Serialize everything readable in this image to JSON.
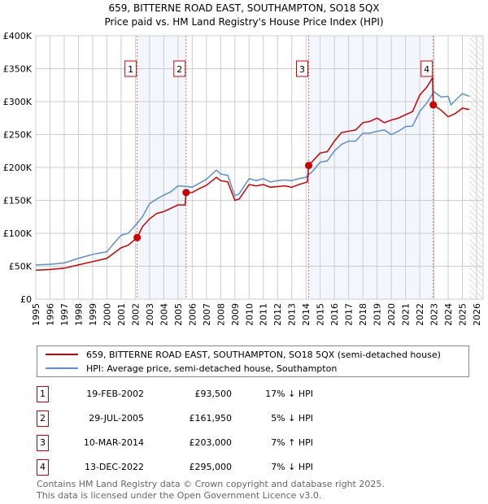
{
  "chart_data": {
    "type": "line",
    "title": "659, BITTERNE ROAD EAST, SOUTHAMPTON, SO18 5QX",
    "subtitle": "Price paid vs. HM Land Registry's House Price Index (HPI)",
    "xlim": [
      1995,
      2026
    ],
    "ylim": [
      0,
      400000
    ],
    "x_ticks": [
      "1995",
      "1996",
      "1997",
      "1998",
      "1999",
      "2000",
      "2001",
      "2002",
      "2003",
      "2004",
      "2005",
      "2006",
      "2007",
      "2008",
      "2009",
      "2010",
      "2011",
      "2012",
      "2013",
      "2014",
      "2015",
      "2016",
      "2017",
      "2018",
      "2019",
      "2020",
      "2021",
      "2022",
      "2023",
      "2024",
      "2025",
      "2026"
    ],
    "y_ticks": [
      {
        "v": 0,
        "label": "£0"
      },
      {
        "v": 50000,
        "label": "£50K"
      },
      {
        "v": 100000,
        "label": "£100K"
      },
      {
        "v": 150000,
        "label": "£150K"
      },
      {
        "v": 200000,
        "label": "£200K"
      },
      {
        "v": 250000,
        "label": "£250K"
      },
      {
        "v": 300000,
        "label": "£300K"
      },
      {
        "v": 350000,
        "label": "£350K"
      },
      {
        "v": 400000,
        "label": "£400K"
      }
    ],
    "grid": true,
    "series": [
      {
        "name": "659, BITTERNE ROAD EAST, SOUTHAMPTON, SO18 5QX (semi-detached house)",
        "color": "#cc0000",
        "x": [
          1995,
          1996,
          1997,
          1998,
          1999,
          2000,
          2001,
          2001.5,
          2002.13,
          2002.5,
          2003,
          2003.5,
          2004,
          2004.5,
          2005,
          2005.5,
          2005.57,
          2006,
          2006.5,
          2007,
          2007.7,
          2008,
          2008.5,
          2009,
          2009.3,
          2010,
          2010.5,
          2011,
          2011.5,
          2012,
          2012.5,
          2013,
          2013.5,
          2014.1,
          2014.19,
          2015,
          2015.5,
          2016,
          2016.5,
          2017,
          2017.5,
          2018,
          2018.5,
          2019,
          2019.5,
          2020,
          2020.5,
          2021,
          2021.5,
          2022,
          2022.5,
          2022.9,
          2022.95,
          2023.5,
          2024,
          2024.5,
          2025,
          2025.5
        ],
        "y": [
          44000,
          45000,
          47000,
          52000,
          57000,
          62000,
          78000,
          82000,
          93500,
          110000,
          122000,
          130000,
          133000,
          138000,
          143000,
          143000,
          161950,
          162000,
          168000,
          173000,
          185000,
          180000,
          178000,
          150000,
          152000,
          174000,
          172000,
          174000,
          170000,
          171000,
          172000,
          170000,
          174000,
          178000,
          203000,
          222000,
          224000,
          240000,
          253000,
          255000,
          257000,
          268000,
          270000,
          275000,
          268000,
          272000,
          275000,
          280000,
          285000,
          310000,
          322000,
          336000,
          295000,
          287000,
          277000,
          282000,
          290000,
          288000
        ]
      },
      {
        "name": "HPI: Average price, semi-detached house, Southampton",
        "color": "#5b8fd0",
        "x": [
          1995,
          1996,
          1997,
          1998,
          1999,
          2000,
          2000.5,
          2001,
          2001.5,
          2002,
          2002.5,
          2003,
          2003.5,
          2004,
          2004.5,
          2005,
          2005.6,
          2006,
          2006.5,
          2007,
          2007.7,
          2008,
          2008.5,
          2009,
          2009.3,
          2010,
          2010.5,
          2011,
          2011.5,
          2012,
          2012.5,
          2013,
          2013.5,
          2014,
          2014.5,
          2015,
          2015.5,
          2016,
          2016.5,
          2017,
          2017.5,
          2018,
          2018.5,
          2019,
          2019.5,
          2020,
          2020.5,
          2021,
          2021.5,
          2022,
          2022.5,
          2023,
          2023.5,
          2024,
          2024.2,
          2024.5,
          2025,
          2025.5
        ],
        "y": [
          52000,
          53000,
          55000,
          62000,
          68000,
          72000,
          85000,
          97000,
          100000,
          112000,
          125000,
          145000,
          152000,
          158000,
          163000,
          172000,
          171000,
          170000,
          176000,
          182000,
          196000,
          190000,
          188000,
          157000,
          160000,
          183000,
          180000,
          183000,
          178000,
          180000,
          181000,
          180000,
          183000,
          185000,
          195000,
          208000,
          210000,
          225000,
          235000,
          240000,
          240000,
          252000,
          252000,
          255000,
          257000,
          250000,
          255000,
          262000,
          263000,
          285000,
          298000,
          315000,
          307000,
          308000,
          295000,
          302000,
          312000,
          308000
        ]
      }
    ],
    "sales": [
      {
        "id": "1",
        "x": 2002.13,
        "y": 93500
      },
      {
        "id": "2",
        "x": 2005.57,
        "y": 161950
      },
      {
        "id": "3",
        "x": 2014.19,
        "y": 203000
      },
      {
        "id": "4",
        "x": 2022.95,
        "y": 295000
      }
    ],
    "shaded_ranges": [
      [
        2002.13,
        2005.57
      ],
      [
        2014.19,
        2022.95
      ]
    ],
    "forecast_from": 2025.5
  },
  "legend": {
    "price": "659, BITTERNE ROAD EAST, SOUTHAMPTON, SO18 5QX (semi-detached house)",
    "hpi": "HPI: Average price, semi-detached house, Southampton"
  },
  "transactions": [
    {
      "n": "1",
      "date": "19-FEB-2002",
      "price": "£93,500",
      "pct": "17% ↓ HPI"
    },
    {
      "n": "2",
      "date": "29-JUL-2005",
      "price": "£161,950",
      "pct": "5% ↓ HPI"
    },
    {
      "n": "3",
      "date": "10-MAR-2014",
      "price": "£203,000",
      "pct": "7% ↑ HPI"
    },
    {
      "n": "4",
      "date": "13-DEC-2022",
      "price": "£295,000",
      "pct": "7% ↓ HPI"
    }
  ],
  "footer": [
    "Contains HM Land Registry data © Crown copyright and database right 2025.",
    "This data is licensed under the Open Government Licence v3.0."
  ]
}
